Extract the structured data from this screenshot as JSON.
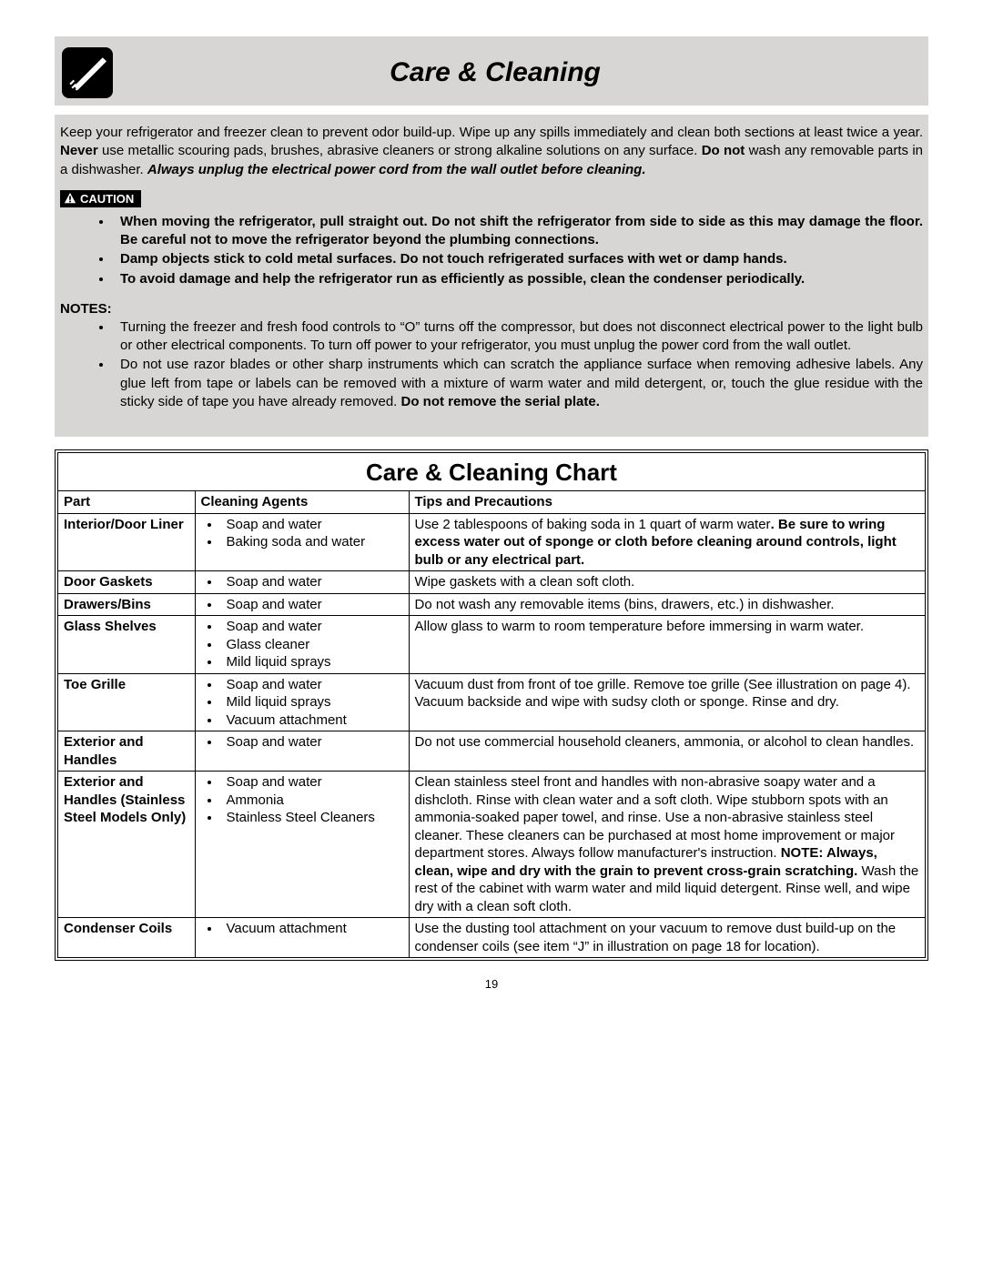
{
  "page": {
    "title": "Care & Cleaning",
    "number": "19"
  },
  "intro": {
    "pre": "Keep your refrigerator and freezer clean to prevent odor build-up. Wipe up any spills immediately and clean both sections at least twice a year. ",
    "never": "Never",
    "mid1": " use metallic scouring pads, brushes, abrasive cleaners or strong alkaline solutions on any surface. ",
    "donot": "Do not",
    "mid2": " wash any removable parts in a dishwasher. ",
    "italic": "Always unplug the electrical power cord from the wall outlet before cleaning."
  },
  "caution": {
    "label": "CAUTION",
    "items": [
      "When moving the refrigerator, pull straight out. Do not shift the refrigerator from side to side as this may damage the floor. Be careful not to move the refrigerator beyond the plumbing connections.",
      "Damp objects stick to cold metal surfaces. Do not touch refrigerated surfaces with wet or damp hands.",
      "To avoid damage and help the refrigerator run as efficiently as possible, clean the condenser periodically."
    ]
  },
  "notes": {
    "heading": "NOTES:",
    "items": [
      {
        "text": "Turning the freezer and fresh food controls  to “O” turns off the compressor, but does not disconnect electrical power to the light bulb or other electrical components. To turn off power to your refrigerator, you must unplug the power cord from the wall outlet."
      },
      {
        "text": "Do not use razor blades or other sharp instruments which can scratch the appliance surface when removing adhesive labels. Any glue left from tape or labels can be removed with a mixture of warm water and mild detergent, or, touch the glue residue with the sticky side of tape you have already removed. ",
        "bold_suffix": "Do not remove the serial plate."
      }
    ]
  },
  "chart": {
    "title": "Care & Cleaning Chart",
    "headers": {
      "part": "Part",
      "agents": "Cleaning Agents",
      "tips": "Tips and Precautions"
    },
    "rows": [
      {
        "part": "Interior/Door Liner",
        "agents": [
          "Soap and water",
          "Baking soda and water"
        ],
        "tips_pre": "Use 2 tablespoons of baking soda in 1 quart of warm water",
        "tips_bold": ". Be sure to wring excess water out of sponge or cloth before cleaning around controls, light bulb or any electrical part.",
        "tips_post": ""
      },
      {
        "part": "Door Gaskets",
        "agents": [
          "Soap and water"
        ],
        "tips_pre": "Wipe gaskets with a clean soft cloth.",
        "tips_bold": "",
        "tips_post": ""
      },
      {
        "part": "Drawers/Bins",
        "agents": [
          "Soap and water"
        ],
        "tips_pre": "Do not wash any removable items (bins, drawers, etc.) in dishwasher.",
        "tips_bold": "",
        "tips_post": ""
      },
      {
        "part": "Glass Shelves",
        "agents": [
          "Soap and water",
          "Glass cleaner",
          "Mild liquid sprays"
        ],
        "tips_pre": "Allow glass to warm to room temperature before immersing in warm water.",
        "tips_bold": "",
        "tips_post": ""
      },
      {
        "part": "Toe Grille",
        "agents": [
          "Soap and water",
          "Mild liquid sprays",
          "Vacuum attachment"
        ],
        "tips_pre": "Vacuum dust from front of toe grille. Remove toe grille (See illustration on page 4). Vacuum backside and wipe with sudsy cloth or sponge. Rinse and dry.",
        "tips_bold": "",
        "tips_post": ""
      },
      {
        "part": "Exterior and Handles",
        "agents": [
          "Soap and water"
        ],
        "tips_pre": "Do not use commercial household cleaners, ammonia, or alcohol to clean handles.",
        "tips_bold": "",
        "tips_post": ""
      },
      {
        "part": "Exterior and Handles (Stainless Steel Models Only)",
        "agents": [
          "Soap and water",
          "Ammonia",
          "Stainless Steel Cleaners"
        ],
        "tips_pre": "Clean stainless steel front and handles with non-abrasive soapy water and a dishcloth. Rinse with clean water and a soft cloth. Wipe stubborn spots with an ammonia-soaked paper towel, and rinse. Use a non-abrasive stainless steel cleaner. These cleaners can be purchased at most home improvement or major department stores. Always follow manufacturer's instruction. ",
        "tips_bold": "NOTE: Always, clean, wipe and dry with the grain to prevent cross-grain scratching.",
        "tips_post": " Wash the rest of the cabinet with warm water and mild liquid detergent. Rinse well, and wipe dry with a clean soft cloth."
      },
      {
        "part": "Condenser Coils",
        "agents": [
          "Vacuum attachment"
        ],
        "tips_pre": "Use the dusting tool attachment on your vacuum to remove dust build-up on the condenser coils (see item “J” in illustration on page 18 for location).",
        "tips_bold": "",
        "tips_post": ""
      }
    ]
  }
}
